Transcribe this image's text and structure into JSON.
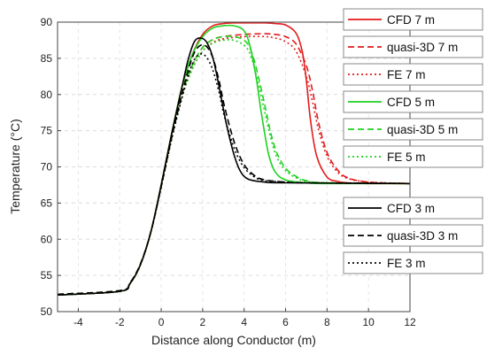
{
  "chart_data": {
    "type": "line",
    "title": "",
    "xlabel": "Distance along Conductor (m)",
    "ylabel": "Temperature (°C)",
    "xlim": [
      -5,
      12
    ],
    "ylim": [
      50,
      90
    ],
    "xticks": [
      -4,
      -2,
      0,
      2,
      4,
      6,
      8,
      10,
      12
    ],
    "yticks": [
      50,
      55,
      60,
      65,
      70,
      75,
      80,
      85,
      90
    ],
    "grid": true,
    "legend_placement": "right",
    "series": [
      {
        "name": "CFD 7 m",
        "color": "#e31a1c",
        "dash": "solid",
        "x": [
          -5,
          -2,
          -1.5,
          -1,
          -0.5,
          0,
          0.5,
          1,
          1.5,
          2,
          2.5,
          3,
          3.5,
          4,
          4.5,
          5,
          5.5,
          6,
          6.5,
          6.8,
          7,
          7.2,
          7.5,
          8,
          8.5,
          9,
          10,
          12
        ],
        "y": [
          52.3,
          52.8,
          53.9,
          56.5,
          61,
          67.5,
          74.5,
          81,
          85.5,
          88.3,
          89.5,
          89.8,
          89.9,
          89.9,
          89.9,
          89.9,
          89.8,
          89.6,
          88.5,
          86,
          82,
          76.5,
          71.5,
          68.6,
          68,
          67.8,
          67.7,
          67.7
        ]
      },
      {
        "name": "quasi-3D 7 m",
        "color": "#e31a1c",
        "dash": "dashed",
        "x": [
          -5,
          -2,
          -1.5,
          -1,
          -0.5,
          0,
          0.5,
          1,
          1.5,
          2,
          2.5,
          3,
          4,
          5,
          5.5,
          6,
          6.5,
          7,
          7.3,
          7.6,
          8,
          8.5,
          9,
          10,
          12
        ],
        "y": [
          52.4,
          52.9,
          54,
          56.6,
          61,
          67.3,
          74,
          80,
          84,
          86.5,
          87.6,
          88,
          88.3,
          88.4,
          88.3,
          88,
          87,
          84,
          80.5,
          76,
          72,
          69.6,
          68.5,
          67.9,
          67.7
        ]
      },
      {
        "name": "FE 7 m",
        "color": "#e31a1c",
        "dash": "dotted",
        "x": [
          -5,
          -2,
          -1.5,
          -1,
          -0.5,
          0,
          0.5,
          1,
          1.5,
          2,
          2.5,
          3,
          4,
          5,
          5.5,
          6,
          6.5,
          7,
          7.3,
          7.6,
          8,
          8.5,
          9,
          10,
          12
        ],
        "y": [
          52.3,
          52.8,
          53.9,
          56.5,
          61,
          67.2,
          73.8,
          79.6,
          83.5,
          86,
          87.2,
          87.7,
          88,
          88,
          87.8,
          87.3,
          86,
          82.5,
          79,
          75,
          71.5,
          69.3,
          68.4,
          67.9,
          67.7
        ]
      },
      {
        "name": "CFD 5 m",
        "color": "#1fd11f",
        "dash": "solid",
        "x": [
          -5,
          -2,
          -1.5,
          -1,
          -0.5,
          0,
          0.5,
          1,
          1.5,
          2,
          2.5,
          3,
          3.5,
          4,
          4.3,
          4.6,
          4.8,
          5,
          5.2,
          5.5,
          6,
          7,
          8,
          12
        ],
        "y": [
          52.3,
          52.8,
          53.9,
          56.5,
          61,
          67.5,
          74.5,
          81,
          85.5,
          88,
          89.2,
          89.5,
          89.5,
          88.8,
          86.5,
          82,
          78,
          74.5,
          71.5,
          69.3,
          68.2,
          67.8,
          67.7,
          67.7
        ]
      },
      {
        "name": "quasi-3D 5 m",
        "color": "#1fd11f",
        "dash": "dashed",
        "x": [
          -5,
          -2,
          -1.5,
          -1,
          -0.5,
          0,
          0.5,
          1,
          1.5,
          2,
          2.5,
          3,
          3.5,
          4,
          4.3,
          4.6,
          5,
          5.3,
          5.6,
          6,
          6.5,
          7,
          8,
          12
        ],
        "y": [
          52.4,
          52.9,
          54,
          56.6,
          61,
          67.3,
          74,
          80,
          84,
          86.5,
          87.6,
          88,
          88,
          87.5,
          86.3,
          83.5,
          78.5,
          74.5,
          71.8,
          69.8,
          68.7,
          68.1,
          67.8,
          67.7
        ]
      },
      {
        "name": "FE 5 m",
        "color": "#1fd11f",
        "dash": "dotted",
        "x": [
          -5,
          -2,
          -1.5,
          -1,
          -0.5,
          0,
          0.5,
          1,
          1.5,
          2,
          2.5,
          3,
          3.5,
          4,
          4.3,
          4.6,
          5,
          5.3,
          5.6,
          6,
          6.5,
          7,
          8,
          12
        ],
        "y": [
          52.3,
          52.8,
          53.9,
          56.5,
          61,
          67.2,
          73.8,
          79.6,
          83.5,
          86,
          87.1,
          87.5,
          87.5,
          86.8,
          85.5,
          82.5,
          77.5,
          73.8,
          71.2,
          69.5,
          68.5,
          68,
          67.8,
          67.7
        ]
      },
      {
        "name": "CFD 3 m",
        "color": "#000000",
        "dash": "solid",
        "x": [
          -5,
          -2,
          -1.5,
          -1,
          -0.5,
          0,
          0.5,
          1,
          1.3,
          1.6,
          1.9,
          2.2,
          2.5,
          2.8,
          3,
          3.2,
          3.5,
          3.8,
          4.2,
          5,
          6,
          12
        ],
        "y": [
          52.3,
          52.8,
          53.9,
          56.5,
          61,
          67.5,
          74.5,
          81,
          84.8,
          87.3,
          87.8,
          87.2,
          85,
          81,
          78,
          75.2,
          71.8,
          69.5,
          68.3,
          67.9,
          67.8,
          67.7
        ]
      },
      {
        "name": "quasi-3D 3 m",
        "color": "#000000",
        "dash": "dashed",
        "x": [
          -5,
          -2,
          -1.5,
          -1,
          -0.5,
          0,
          0.5,
          1,
          1.3,
          1.6,
          1.9,
          2.2,
          2.5,
          2.8,
          3,
          3.3,
          3.6,
          4,
          4.5,
          5,
          6,
          7,
          12
        ],
        "y": [
          52.4,
          52.9,
          54,
          56.6,
          61,
          67.3,
          74,
          80,
          83.3,
          85.8,
          86.8,
          86.6,
          85,
          81.8,
          79,
          75.6,
          72.8,
          70.3,
          68.8,
          68.2,
          67.9,
          67.8,
          67.7
        ]
      },
      {
        "name": "FE 3 m",
        "color": "#000000",
        "dash": "dotted",
        "x": [
          -5,
          -2,
          -1.5,
          -1,
          -0.5,
          0,
          0.5,
          1,
          1.3,
          1.6,
          1.9,
          2.2,
          2.5,
          2.8,
          3,
          3.3,
          3.6,
          4,
          4.5,
          5,
          6,
          7,
          12
        ],
        "y": [
          52.3,
          52.8,
          53.9,
          56.5,
          61,
          67.2,
          73.8,
          79.5,
          82.6,
          84.8,
          85.6,
          85.1,
          83.3,
          80.2,
          77.5,
          74.5,
          72,
          69.9,
          68.6,
          68.1,
          67.9,
          67.8,
          67.7
        ]
      }
    ]
  }
}
